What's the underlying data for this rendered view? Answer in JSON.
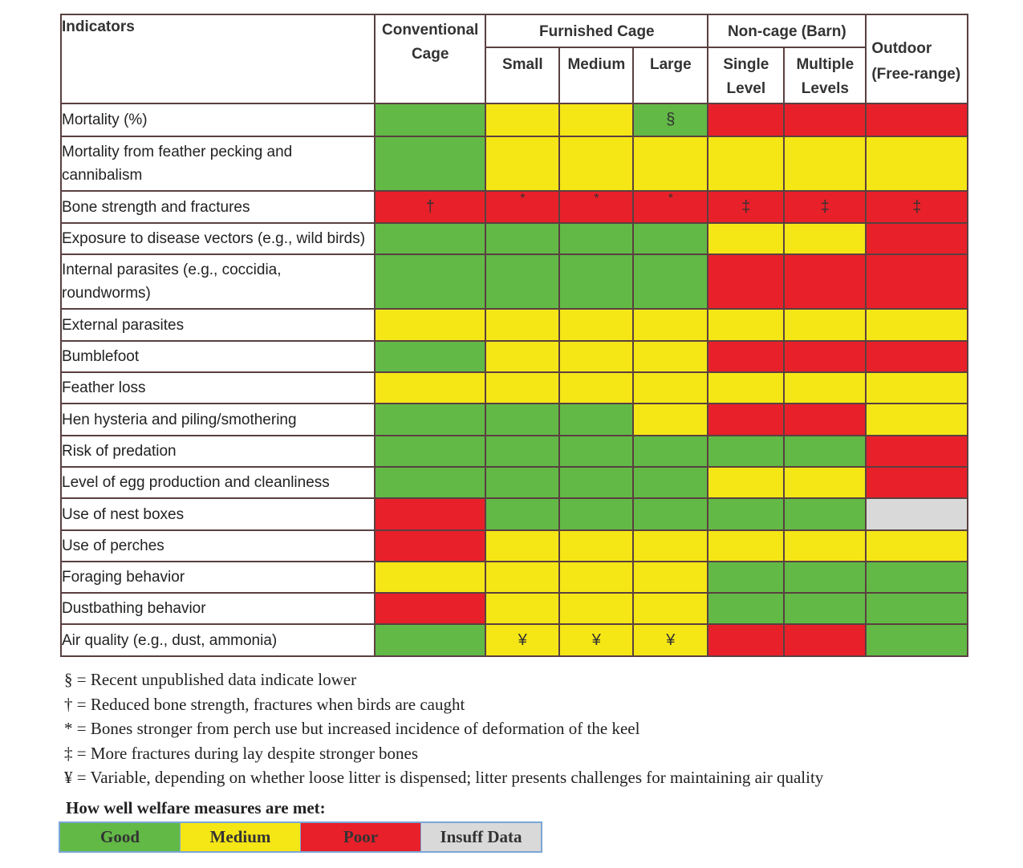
{
  "header": {
    "indicators": "Indicators",
    "conventional": "Conventional Cage",
    "furnished": "Furnished Cage",
    "small": "Small",
    "medium": "Medium",
    "large": "Large",
    "noncage": "Non-cage (Barn)",
    "single": "Single Level",
    "multiple": "Multiple Levels",
    "outdoor": "Outdoor (Free-range)"
  },
  "colors": {
    "G": "#62b946",
    "Y": "#f5e616",
    "R": "#e8202a",
    "N": "#d9d9d9"
  },
  "rows": [
    {
      "label": "Mortality (%)",
      "cells": [
        "G",
        "Y",
        "Y",
        "G",
        "R",
        "R",
        "R"
      ],
      "marks": [
        "",
        "",
        "",
        "§",
        "",
        "",
        ""
      ],
      "h": 41
    },
    {
      "label": "Mortality from feather pecking and cannibalism",
      "cells": [
        "G",
        "Y",
        "Y",
        "Y",
        "Y",
        "Y",
        "Y"
      ],
      "marks": [
        "",
        "",
        "",
        "",
        "",
        "",
        ""
      ],
      "h": 68
    },
    {
      "label": "Bone strength and fractures",
      "cells": [
        "R",
        "R",
        "R",
        "R",
        "R",
        "R",
        "R"
      ],
      "marks": [
        "†",
        "*",
        "*",
        "*",
        "‡",
        "‡",
        "‡"
      ],
      "h": 40
    },
    {
      "label": "Exposure to disease vectors (e.g., wild birds)",
      "cells": [
        "G",
        "G",
        "G",
        "G",
        "Y",
        "Y",
        "R"
      ],
      "marks": [
        "",
        "",
        "",
        "",
        "",
        "",
        ""
      ],
      "h": 39
    },
    {
      "label": "Internal parasites (e.g., coccidia, roundworms)",
      "cells": [
        "G",
        "G",
        "G",
        "G",
        "R",
        "R",
        "R"
      ],
      "marks": [
        "",
        "",
        "",
        "",
        "",
        "",
        ""
      ],
      "h": 68
    },
    {
      "label": "External parasites",
      "cells": [
        "Y",
        "Y",
        "Y",
        "Y",
        "Y",
        "Y",
        "Y"
      ],
      "marks": [
        "",
        "",
        "",
        "",
        "",
        "",
        ""
      ],
      "h": 40
    },
    {
      "label": "Bumblefoot",
      "cells": [
        "G",
        "Y",
        "Y",
        "Y",
        "R",
        "R",
        "R"
      ],
      "marks": [
        "",
        "",
        "",
        "",
        "",
        "",
        ""
      ],
      "h": 39
    },
    {
      "label": "Feather loss",
      "cells": [
        "Y",
        "Y",
        "Y",
        "Y",
        "Y",
        "Y",
        "Y"
      ],
      "marks": [
        "",
        "",
        "",
        "",
        "",
        "",
        ""
      ],
      "h": 39
    },
    {
      "label": "Hen hysteria and piling/smothering",
      "cells": [
        "G",
        "G",
        "G",
        "Y",
        "R",
        "R",
        "Y"
      ],
      "marks": [
        "",
        "",
        "",
        "",
        "",
        "",
        ""
      ],
      "h": 40
    },
    {
      "label": "Risk of predation",
      "cells": [
        "G",
        "G",
        "G",
        "G",
        "G",
        "G",
        "R"
      ],
      "marks": [
        "",
        "",
        "",
        "",
        "",
        "",
        ""
      ],
      "h": 39
    },
    {
      "label": "Level of egg production and cleanliness",
      "cells": [
        "G",
        "G",
        "G",
        "G",
        "Y",
        "Y",
        "R"
      ],
      "marks": [
        "",
        "",
        "",
        "",
        "",
        "",
        ""
      ],
      "h": 39
    },
    {
      "label": "Use of nest boxes",
      "cells": [
        "R",
        "G",
        "G",
        "G",
        "G",
        "G",
        "N"
      ],
      "marks": [
        "",
        "",
        "",
        "",
        "",
        "",
        ""
      ],
      "h": 40
    },
    {
      "label": "Use of perches",
      "cells": [
        "R",
        "Y",
        "Y",
        "Y",
        "Y",
        "Y",
        "Y"
      ],
      "marks": [
        "",
        "",
        "",
        "",
        "",
        "",
        ""
      ],
      "h": 39
    },
    {
      "label": "Foraging behavior",
      "cells": [
        "Y",
        "Y",
        "Y",
        "Y",
        "G",
        "G",
        "G"
      ],
      "marks": [
        "",
        "",
        "",
        "",
        "",
        "",
        ""
      ],
      "h": 39
    },
    {
      "label": "Dustbathing behavior",
      "cells": [
        "R",
        "Y",
        "Y",
        "Y",
        "G",
        "G",
        "G"
      ],
      "marks": [
        "",
        "",
        "",
        "",
        "",
        "",
        ""
      ],
      "h": 39
    },
    {
      "label": "Air quality (e.g., dust, ammonia)",
      "cells": [
        "G",
        "Y",
        "Y",
        "Y",
        "R",
        "R",
        "G"
      ],
      "marks": [
        "",
        "¥",
        "¥",
        "¥",
        "",
        "",
        ""
      ],
      "h": 40
    }
  ],
  "footnotes": [
    "§ = Recent unpublished data indicate lower",
    "† = Reduced bone strength, fractures when birds are caught",
    "* = Bones stronger from perch use but increased incidence of deformation of the keel",
    "‡ = More fractures during lay despite stronger bones",
    "¥  = Variable, depending on whether loose litter is dispensed; litter presents challenges for maintaining air quality"
  ],
  "legend": {
    "title": "How well welfare measures are met:",
    "items": [
      {
        "code": "G",
        "label": "Good"
      },
      {
        "code": "Y",
        "label": "Medium"
      },
      {
        "code": "R",
        "label": "Poor"
      },
      {
        "code": "N",
        "label": "Insuff Data"
      }
    ]
  }
}
